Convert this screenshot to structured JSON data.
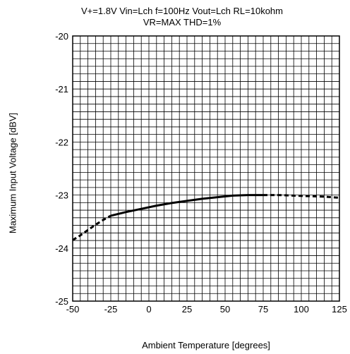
{
  "chart_data": {
    "type": "line",
    "title_lines": [
      "V+=1.8V Vin=Lch f=100Hz Vout=Lch RL=10kohm",
      "VR=MAX THD=1%"
    ],
    "xlabel": "Ambient Temperature [degrees]",
    "ylabel": "Maximum Input Voltage [dBV]",
    "xlim": [
      -50,
      125
    ],
    "ylim": [
      -25,
      -20
    ],
    "xticks": [
      -50,
      -25,
      0,
      25,
      50,
      75,
      100,
      125
    ],
    "yticks": [
      -25,
      -24,
      -23,
      -22,
      -21,
      -20
    ],
    "grid": true,
    "series": [
      {
        "style": "dashed",
        "x": [
          -50,
          -45,
          -40,
          -35,
          -30,
          -25
        ],
        "y": [
          -23.85,
          -23.76,
          -23.66,
          -23.56,
          -23.47,
          -23.39
        ]
      },
      {
        "style": "solid",
        "x": [
          -25,
          -15,
          -5,
          5,
          15,
          25,
          35,
          45,
          55,
          65,
          75
        ],
        "y": [
          -23.39,
          -23.32,
          -23.26,
          -23.2,
          -23.15,
          -23.11,
          -23.07,
          -23.04,
          -23.01,
          -23.0,
          -23.0
        ]
      },
      {
        "style": "dashed",
        "x": [
          75,
          85,
          95,
          105,
          115,
          125
        ],
        "y": [
          -23.0,
          -23.0,
          -23.01,
          -23.02,
          -23.03,
          -23.05
        ]
      }
    ]
  }
}
